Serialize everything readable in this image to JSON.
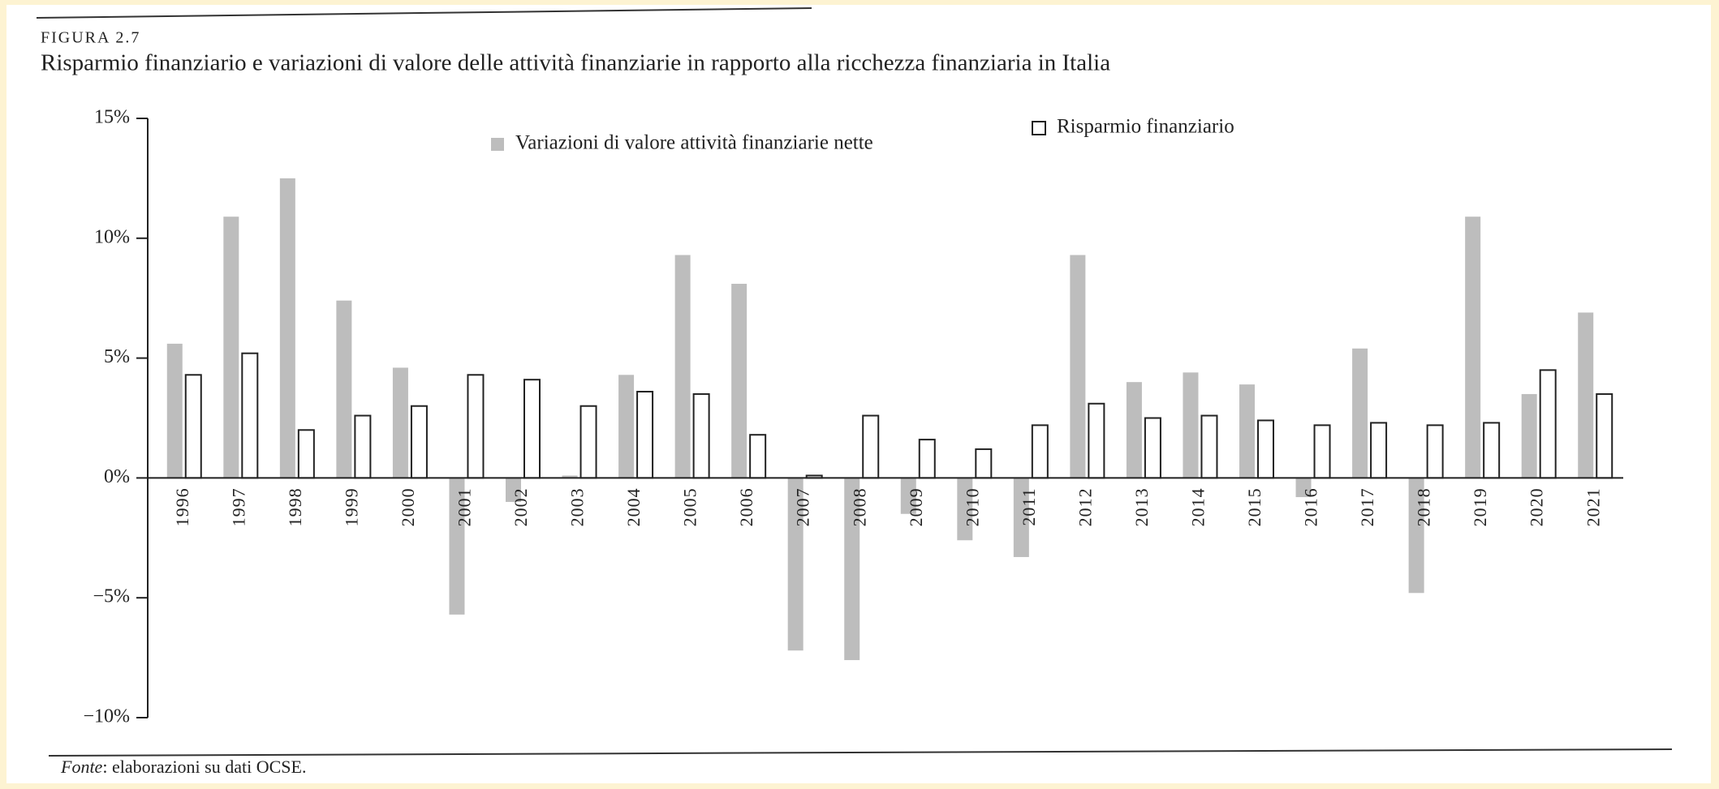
{
  "chart_data": {
    "type": "bar",
    "figure_label": "FIGURA 2.7",
    "title": "Risparmio finanziario e variazioni di valore delle attività finanziarie in rapporto alla ricchezza finanziaria in Italia",
    "source_label": "Fonte",
    "source": ": elaborazioni su dati OCSE.",
    "categories": [
      "1996",
      "1997",
      "1998",
      "1999",
      "2000",
      "2001",
      "2002",
      "2003",
      "2004",
      "2005",
      "2006",
      "2007",
      "2008",
      "2009",
      "2010",
      "2011",
      "2012",
      "2013",
      "2014",
      "2015",
      "2016",
      "2017",
      "2018",
      "2019",
      "2020",
      "2021"
    ],
    "series": [
      {
        "name": "Variazioni di valore attività finanziarie nette",
        "color": "#bdbdbd",
        "values": [
          5.6,
          10.9,
          12.5,
          7.4,
          4.6,
          -5.7,
          -1.0,
          0.1,
          4.3,
          9.3,
          8.1,
          -7.2,
          -7.6,
          -1.5,
          -2.6,
          -3.3,
          9.3,
          4.0,
          4.4,
          3.9,
          -0.8,
          5.4,
          -4.8,
          10.9,
          3.5,
          6.9
        ]
      },
      {
        "name": "Risparmio finanziario",
        "color": "#ffffff",
        "values": [
          4.3,
          5.2,
          2.0,
          2.6,
          3.0,
          4.3,
          4.1,
          3.0,
          3.6,
          3.5,
          1.8,
          0.1,
          2.6,
          1.6,
          1.2,
          2.2,
          3.1,
          2.5,
          2.6,
          2.4,
          2.2,
          2.3,
          2.2,
          2.3,
          4.5,
          3.5
        ]
      }
    ],
    "ylim": [
      -10,
      15
    ],
    "yticks": [
      {
        "value": 15,
        "label": "15%"
      },
      {
        "value": 10,
        "label": "10%"
      },
      {
        "value": 5,
        "label": "5%"
      },
      {
        "value": 0,
        "label": "0%"
      },
      {
        "value": -5,
        "label": "−5%"
      },
      {
        "value": -10,
        "label": "−10%"
      }
    ],
    "grid": false
  }
}
